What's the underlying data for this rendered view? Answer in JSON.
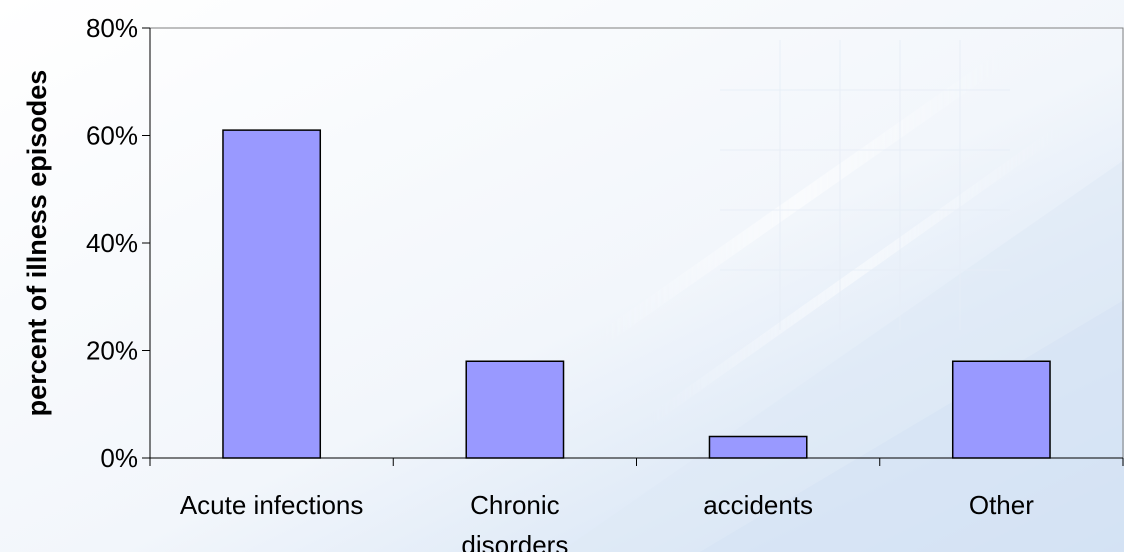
{
  "chart_data": {
    "type": "bar",
    "title": "",
    "xlabel": "",
    "ylabel": "percent of illness episodes",
    "categories": [
      "Acute infections",
      "Chronic disorders",
      "accidents",
      "Other"
    ],
    "category_lines": [
      [
        "Acute infections"
      ],
      [
        "Chronic",
        "disorders"
      ],
      [
        "accidents"
      ],
      [
        "Other"
      ]
    ],
    "values": [
      61,
      18,
      4,
      18
    ],
    "ylim": [
      0,
      80
    ],
    "yticks": [
      0,
      20,
      40,
      60,
      80
    ],
    "ytick_labels": [
      "0%",
      "20%",
      "40%",
      "60%",
      "80%"
    ],
    "grid": false,
    "legend": "none",
    "colors": {
      "bar_fill": "#9999ff",
      "bar_stroke": "#000000",
      "axis": "#000000",
      "text": "#000000"
    }
  }
}
